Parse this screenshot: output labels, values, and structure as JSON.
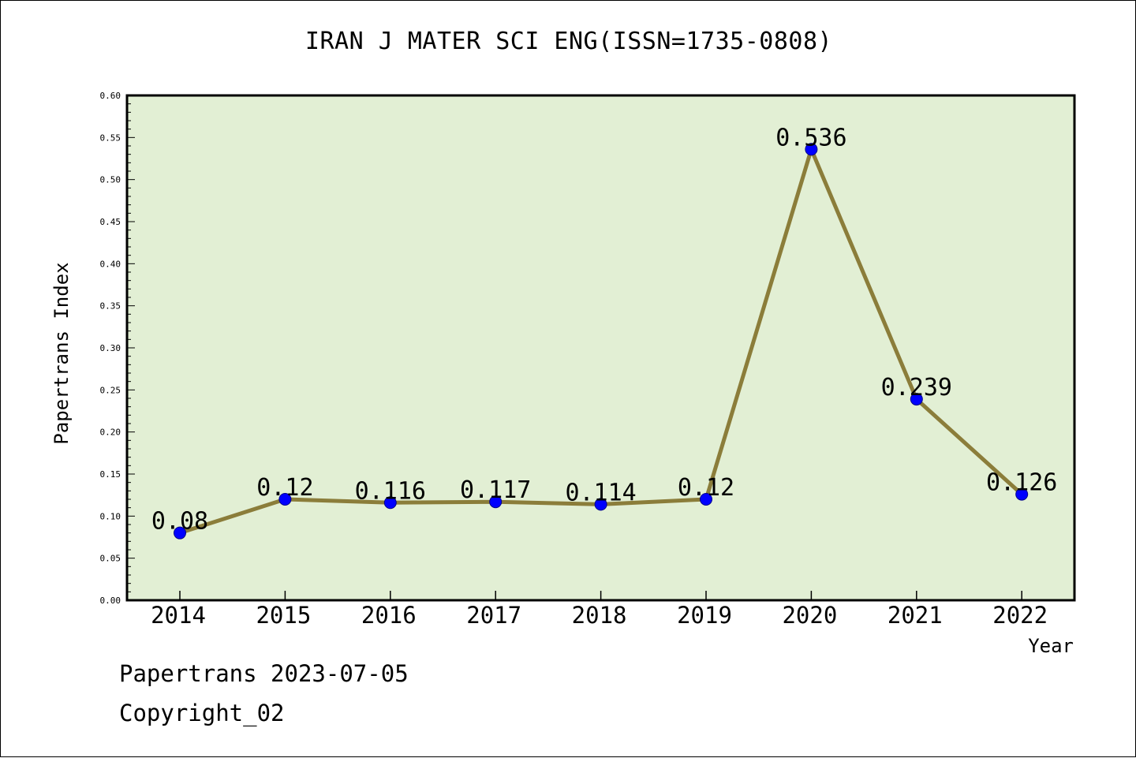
{
  "chart_data": {
    "type": "line",
    "title": "IRAN J MATER SCI ENG(ISSN=1735-0808)",
    "xlabel": "Year",
    "ylabel": "Papertrans Index",
    "categories": [
      "2014",
      "2015",
      "2016",
      "2017",
      "2018",
      "2019",
      "2020",
      "2021",
      "2022"
    ],
    "series": [
      {
        "values": [
          0.08,
          0.12,
          0.116,
          0.117,
          0.114,
          0.12,
          0.536,
          0.239,
          0.126
        ],
        "labels": [
          "0.08",
          "0.12",
          "0.116",
          "0.117",
          "0.114",
          "0.12",
          "0.536",
          "0.239",
          "0.126"
        ]
      }
    ],
    "ylim": [
      0,
      0.6
    ],
    "yticks": [
      "0.00",
      "0.05",
      "0.10",
      "0.15",
      "0.20",
      "0.25",
      "0.30",
      "0.35",
      "0.40",
      "0.45",
      "0.50",
      "0.55",
      "0.60"
    ],
    "grid": false,
    "legend": "none",
    "colors": {
      "plot_background": "#e2efd4",
      "line": "#8b7d3a",
      "marker": "#0000ff"
    }
  },
  "footer": {
    "source": "Papertrans 2023-07-05",
    "copyright": "Copyright_02"
  }
}
